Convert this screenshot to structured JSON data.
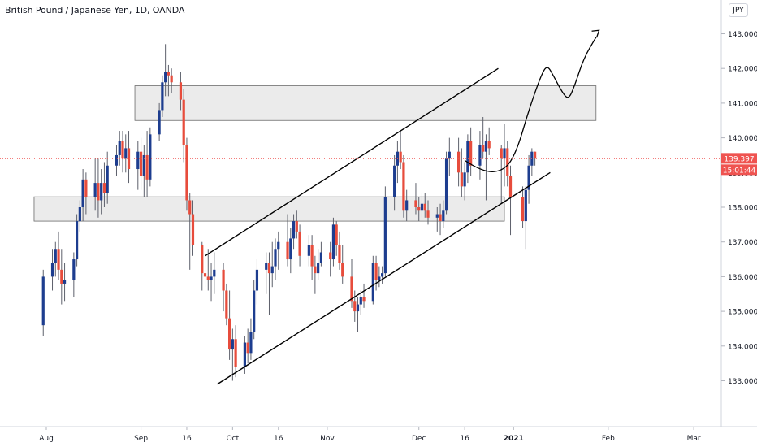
{
  "header": {
    "symbol_title": "British Pound / Japanese Yen, 1D, OANDA",
    "currency_button": "JPY"
  },
  "colors": {
    "up": "#1d3d8f",
    "down": "#e74c3c",
    "zone_fill": "#e6e6e6",
    "zone_stroke": "#6b6b6b",
    "last_price_bg": "#ef5350",
    "countdown_bg": "#ef5350",
    "axis_text": "#131722",
    "drawing": "#000000"
  },
  "price_axis": {
    "last_price_label": "139.397",
    "countdown_label": "15:01:44"
  },
  "chart_data": {
    "type": "candlestick",
    "instrument": "British Pound / Japanese Yen",
    "timeframe": "1D",
    "source": "OANDA",
    "y_ticks": [
      133,
      134,
      135,
      136,
      137,
      138,
      139,
      140,
      141,
      142,
      143
    ],
    "y_tick_labels": [
      "133.000",
      "134.000",
      "135.000",
      "136.000",
      "137.000",
      "138.000",
      "139.000",
      "140.000",
      "141.000",
      "142.000",
      "143.000"
    ],
    "ylim": [
      132.1,
      144.4
    ],
    "x_axis_labels": [
      {
        "label": "Aug",
        "day": 0
      },
      {
        "label": "Sep",
        "day": 31
      },
      {
        "label": "16",
        "day": 46
      },
      {
        "label": "Oct",
        "day": 61
      },
      {
        "label": "16",
        "day": 76
      },
      {
        "label": "Nov",
        "day": 92
      },
      {
        "label": "Dec",
        "day": 122
      },
      {
        "label": "16",
        "day": 137
      },
      {
        "label": "2021",
        "day": 153
      },
      {
        "label": "Feb",
        "day": 184
      },
      {
        "label": "Mar",
        "day": 212
      }
    ],
    "last_price": 139.397,
    "candles": [
      {
        "t": "Jul 31",
        "o": 134.6,
        "h": 136.2,
        "l": 134.3,
        "c": 136.0
      },
      {
        "t": "Aug 3",
        "o": 136.0,
        "h": 136.8,
        "l": 135.6,
        "c": 136.4
      },
      {
        "t": "Aug 4",
        "o": 136.4,
        "h": 137.0,
        "l": 136.0,
        "c": 136.8
      },
      {
        "t": "Aug 5",
        "o": 136.8,
        "h": 137.3,
        "l": 135.9,
        "c": 136.2
      },
      {
        "t": "Aug 6",
        "o": 136.2,
        "h": 136.8,
        "l": 135.2,
        "c": 135.8
      },
      {
        "t": "Aug 7",
        "o": 135.8,
        "h": 136.4,
        "l": 135.3,
        "c": 135.9
      },
      {
        "t": "Aug 10",
        "o": 135.9,
        "h": 136.7,
        "l": 135.4,
        "c": 136.5
      },
      {
        "t": "Aug 11",
        "o": 136.5,
        "h": 137.8,
        "l": 136.3,
        "c": 137.6
      },
      {
        "t": "Aug 12",
        "o": 137.6,
        "h": 138.2,
        "l": 137.3,
        "c": 138.0
      },
      {
        "t": "Aug 13",
        "o": 138.0,
        "h": 139.1,
        "l": 137.6,
        "c": 138.8
      },
      {
        "t": "Aug 14",
        "o": 138.8,
        "h": 139.0,
        "l": 137.8,
        "c": 138.3
      },
      {
        "t": "Aug 17",
        "o": 138.3,
        "h": 139.4,
        "l": 137.9,
        "c": 138.7
      },
      {
        "t": "Aug 18",
        "o": 138.7,
        "h": 139.4,
        "l": 137.7,
        "c": 138.2
      },
      {
        "t": "Aug 19",
        "o": 138.2,
        "h": 139.1,
        "l": 137.8,
        "c": 138.7
      },
      {
        "t": "Aug 20",
        "o": 138.7,
        "h": 139.3,
        "l": 138.0,
        "c": 138.4
      },
      {
        "t": "Aug 21",
        "o": 138.4,
        "h": 139.6,
        "l": 138.1,
        "c": 139.2
      },
      {
        "t": "Aug 24",
        "o": 139.2,
        "h": 139.8,
        "l": 138.9,
        "c": 139.5
      },
      {
        "t": "Aug 25",
        "o": 139.5,
        "h": 140.2,
        "l": 139.2,
        "c": 139.9
      },
      {
        "t": "Aug 26",
        "o": 139.9,
        "h": 140.2,
        "l": 139.0,
        "c": 139.4
      },
      {
        "t": "Aug 27",
        "o": 139.4,
        "h": 140.1,
        "l": 139.0,
        "c": 139.7
      },
      {
        "t": "Aug 28",
        "o": 139.7,
        "h": 140.2,
        "l": 138.7,
        "c": 139.1
      },
      {
        "t": "Aug 31",
        "o": 139.1,
        "h": 139.9,
        "l": 138.5,
        "c": 139.6
      },
      {
        "t": "Sep 1",
        "o": 139.6,
        "h": 140.0,
        "l": 138.5,
        "c": 138.9
      },
      {
        "t": "Sep 2",
        "o": 138.9,
        "h": 139.8,
        "l": 138.3,
        "c": 139.5
      },
      {
        "t": "Sep 3",
        "o": 139.5,
        "h": 140.2,
        "l": 138.3,
        "c": 138.8
      },
      {
        "t": "Sep 4",
        "o": 138.8,
        "h": 140.3,
        "l": 138.6,
        "c": 140.1
      },
      {
        "t": "Sep 7",
        "o": 140.1,
        "h": 141.0,
        "l": 139.9,
        "c": 140.8
      },
      {
        "t": "Sep 8",
        "o": 140.8,
        "h": 141.8,
        "l": 140.6,
        "c": 141.6
      },
      {
        "t": "Sep 9",
        "o": 141.6,
        "h": 142.7,
        "l": 141.2,
        "c": 141.9
      },
      {
        "t": "Sep 10",
        "o": 141.9,
        "h": 142.1,
        "l": 141.2,
        "c": 141.8
      },
      {
        "t": "Sep 11",
        "o": 141.8,
        "h": 142.0,
        "l": 141.3,
        "c": 141.6
      },
      {
        "t": "Sep 14",
        "o": 141.6,
        "h": 141.9,
        "l": 140.8,
        "c": 141.1
      },
      {
        "t": "Sep 15",
        "o": 141.1,
        "h": 141.4,
        "l": 139.3,
        "c": 139.8
      },
      {
        "t": "Sep 16",
        "o": 139.8,
        "h": 140.0,
        "l": 137.9,
        "c": 138.2
      },
      {
        "t": "Sep 17",
        "o": 138.2,
        "h": 138.4,
        "l": 136.2,
        "c": 137.8
      },
      {
        "t": "Sep 18",
        "o": 137.8,
        "h": 138.2,
        "l": 136.6,
        "c": 136.9
      },
      {
        "t": "Sep 21",
        "o": 136.9,
        "h": 137.0,
        "l": 135.6,
        "c": 136.1
      },
      {
        "t": "Sep 22",
        "o": 136.1,
        "h": 136.6,
        "l": 135.7,
        "c": 136.0
      },
      {
        "t": "Sep 23",
        "o": 136.0,
        "h": 136.8,
        "l": 135.6,
        "c": 135.9
      },
      {
        "t": "Sep 24",
        "o": 135.9,
        "h": 136.4,
        "l": 135.3,
        "c": 136.0
      },
      {
        "t": "Sep 25",
        "o": 136.0,
        "h": 136.7,
        "l": 135.5,
        "c": 136.2
      },
      {
        "t": "Sep 28",
        "o": 136.2,
        "h": 136.4,
        "l": 135.0,
        "c": 135.6
      },
      {
        "t": "Sep 29",
        "o": 135.6,
        "h": 135.8,
        "l": 134.6,
        "c": 134.8
      },
      {
        "t": "Sep 30",
        "o": 134.8,
        "h": 135.6,
        "l": 133.6,
        "c": 133.9
      },
      {
        "t": "Oct 1",
        "o": 133.9,
        "h": 134.5,
        "l": 133.0,
        "c": 134.2
      },
      {
        "t": "Oct 2",
        "o": 134.2,
        "h": 134.6,
        "l": 133.1,
        "c": 133.4
      },
      {
        "t": "Oct 5",
        "o": 133.4,
        "h": 134.3,
        "l": 133.2,
        "c": 134.1
      },
      {
        "t": "Oct 6",
        "o": 134.1,
        "h": 134.5,
        "l": 133.5,
        "c": 133.8
      },
      {
        "t": "Oct 7",
        "o": 133.8,
        "h": 134.8,
        "l": 133.6,
        "c": 134.4
      },
      {
        "t": "Oct 8",
        "o": 134.4,
        "h": 135.9,
        "l": 134.2,
        "c": 135.6
      },
      {
        "t": "Oct 9",
        "o": 135.6,
        "h": 136.5,
        "l": 135.2,
        "c": 136.2
      },
      {
        "t": "Oct 12",
        "o": 136.2,
        "h": 136.7,
        "l": 135.5,
        "c": 136.4
      },
      {
        "t": "Oct 13",
        "o": 136.4,
        "h": 136.7,
        "l": 134.9,
        "c": 136.1
      },
      {
        "t": "Oct 14",
        "o": 136.1,
        "h": 137.0,
        "l": 135.7,
        "c": 136.3
      },
      {
        "t": "Oct 15",
        "o": 136.3,
        "h": 137.1,
        "l": 135.9,
        "c": 136.8
      },
      {
        "t": "Oct 16",
        "o": 136.8,
        "h": 137.3,
        "l": 136.2,
        "c": 137.0
      },
      {
        "t": "Oct 19",
        "o": 137.0,
        "h": 137.8,
        "l": 136.3,
        "c": 136.5
      },
      {
        "t": "Oct 20",
        "o": 136.5,
        "h": 137.4,
        "l": 136.1,
        "c": 137.1
      },
      {
        "t": "Oct 21",
        "o": 137.1,
        "h": 137.8,
        "l": 136.8,
        "c": 137.6
      },
      {
        "t": "Oct 22",
        "o": 137.6,
        "h": 137.9,
        "l": 137.1,
        "c": 137.3
      },
      {
        "t": "Oct 23",
        "o": 137.3,
        "h": 137.5,
        "l": 136.3,
        "c": 136.6
      },
      {
        "t": "Oct 26",
        "o": 136.6,
        "h": 137.2,
        "l": 136.3,
        "c": 136.9
      },
      {
        "t": "Oct 27",
        "o": 136.9,
        "h": 137.2,
        "l": 135.9,
        "c": 136.3
      },
      {
        "t": "Oct 28",
        "o": 136.3,
        "h": 136.6,
        "l": 135.5,
        "c": 136.1
      },
      {
        "t": "Oct 29",
        "o": 136.1,
        "h": 136.8,
        "l": 135.9,
        "c": 136.4
      },
      {
        "t": "Oct 30",
        "o": 136.4,
        "h": 137.0,
        "l": 136.3,
        "c": 136.7
      },
      {
        "t": "Nov 2",
        "o": 136.7,
        "h": 137.0,
        "l": 136.0,
        "c": 136.5
      },
      {
        "t": "Nov 3",
        "o": 136.5,
        "h": 137.7,
        "l": 136.3,
        "c": 137.5
      },
      {
        "t": "Nov 4",
        "o": 137.5,
        "h": 137.6,
        "l": 136.6,
        "c": 136.9
      },
      {
        "t": "Nov 5",
        "o": 136.9,
        "h": 137.3,
        "l": 136.2,
        "c": 136.4
      },
      {
        "t": "Nov 6",
        "o": 136.4,
        "h": 136.9,
        "l": 135.8,
        "c": 136.0
      },
      {
        "t": "Nov 9",
        "o": 136.0,
        "h": 136.5,
        "l": 135.1,
        "c": 135.3
      },
      {
        "t": "Nov 10",
        "o": 135.3,
        "h": 135.6,
        "l": 134.7,
        "c": 135.0
      },
      {
        "t": "Nov 11",
        "o": 135.0,
        "h": 135.4,
        "l": 134.4,
        "c": 135.2
      },
      {
        "t": "Nov 12",
        "o": 135.2,
        "h": 135.6,
        "l": 134.9,
        "c": 135.4
      },
      {
        "t": "Nov 13",
        "o": 135.4,
        "h": 135.8,
        "l": 135.1,
        "c": 135.3
      },
      {
        "t": "Nov 16",
        "o": 135.3,
        "h": 136.6,
        "l": 135.2,
        "c": 136.4
      },
      {
        "t": "Nov 17",
        "o": 136.4,
        "h": 136.6,
        "l": 135.6,
        "c": 135.9
      },
      {
        "t": "Nov 18",
        "o": 135.9,
        "h": 136.3,
        "l": 135.7,
        "c": 136.0
      },
      {
        "t": "Nov 19",
        "o": 136.0,
        "h": 136.3,
        "l": 135.8,
        "c": 136.1
      },
      {
        "t": "Nov 20",
        "o": 136.1,
        "h": 138.6,
        "l": 136.0,
        "c": 138.3
      },
      {
        "t": "Nov 23",
        "o": 138.3,
        "h": 139.5,
        "l": 137.9,
        "c": 139.2
      },
      {
        "t": "Nov 24",
        "o": 139.2,
        "h": 139.9,
        "l": 138.7,
        "c": 139.6
      },
      {
        "t": "Nov 25",
        "o": 139.6,
        "h": 140.2,
        "l": 139.1,
        "c": 139.3
      },
      {
        "t": "Nov 26",
        "o": 139.3,
        "h": 139.5,
        "l": 137.7,
        "c": 137.9
      },
      {
        "t": "Nov 27",
        "o": 137.9,
        "h": 138.5,
        "l": 137.6,
        "c": 138.2
      },
      {
        "t": "Nov 30",
        "o": 138.2,
        "h": 138.7,
        "l": 137.8,
        "c": 138.0
      },
      {
        "t": "Dec 1",
        "o": 138.0,
        "h": 138.3,
        "l": 137.6,
        "c": 137.9
      },
      {
        "t": "Dec 2",
        "o": 137.9,
        "h": 138.4,
        "l": 137.7,
        "c": 138.1
      },
      {
        "t": "Dec 3",
        "o": 138.1,
        "h": 138.4,
        "l": 137.7,
        "c": 137.9
      },
      {
        "t": "Dec 4",
        "o": 137.9,
        "h": 138.2,
        "l": 137.5,
        "c": 137.7
      },
      {
        "t": "Dec 7",
        "o": 137.7,
        "h": 138.0,
        "l": 137.3,
        "c": 137.8
      },
      {
        "t": "Dec 8",
        "o": 137.8,
        "h": 138.1,
        "l": 137.2,
        "c": 137.6
      },
      {
        "t": "Dec 9",
        "o": 137.6,
        "h": 138.2,
        "l": 137.4,
        "c": 137.9
      },
      {
        "t": "Dec 10",
        "o": 137.9,
        "h": 139.6,
        "l": 137.8,
        "c": 139.4
      },
      {
        "t": "Dec 11",
        "o": 139.4,
        "h": 140.0,
        "l": 138.9,
        "c": 139.6
      },
      {
        "t": "Dec 14",
        "o": 139.6,
        "h": 140.0,
        "l": 138.6,
        "c": 139.0
      },
      {
        "t": "Dec 15",
        "o": 139.0,
        "h": 139.7,
        "l": 138.3,
        "c": 138.6
      },
      {
        "t": "Dec 16",
        "o": 138.6,
        "h": 139.3,
        "l": 138.2,
        "c": 139.0
      },
      {
        "t": "Dec 17",
        "o": 139.0,
        "h": 140.1,
        "l": 138.7,
        "c": 139.9
      },
      {
        "t": "Dec 18",
        "o": 139.9,
        "h": 140.3,
        "l": 138.9,
        "c": 139.2
      },
      {
        "t": "Dec 21",
        "o": 139.2,
        "h": 140.2,
        "l": 138.8,
        "c": 139.8
      },
      {
        "t": "Dec 22",
        "o": 139.8,
        "h": 140.6,
        "l": 139.4,
        "c": 139.6
      },
      {
        "t": "Dec 23",
        "o": 139.6,
        "h": 140.1,
        "l": 138.2,
        "c": 139.9
      },
      {
        "t": "Dec 24",
        "o": 139.9,
        "h": 140.3,
        "l": 139.5,
        "c": 139.7
      },
      {
        "t": "Dec 28",
        "o": 139.7,
        "h": 139.8,
        "l": 138.1,
        "c": 139.4
      },
      {
        "t": "Dec 29",
        "o": 139.4,
        "h": 140.4,
        "l": 138.6,
        "c": 139.7
      },
      {
        "t": "Dec 30",
        "o": 139.7,
        "h": 139.9,
        "l": 138.6,
        "c": 138.9
      },
      {
        "t": "Dec 31",
        "o": 138.9,
        "h": 139.2,
        "l": 137.2,
        "c": 138.3
      },
      {
        "t": "Jan 4",
        "o": 138.3,
        "h": 138.6,
        "l": 137.4,
        "c": 137.6
      },
      {
        "t": "Jan 5",
        "o": 137.6,
        "h": 138.6,
        "l": 136.8,
        "c": 138.5
      },
      {
        "t": "Jan 6",
        "o": 138.5,
        "h": 139.5,
        "l": 138.1,
        "c": 139.2
      },
      {
        "t": "Jan 7",
        "o": 139.2,
        "h": 139.7,
        "l": 138.9,
        "c": 139.6
      },
      {
        "t": "Jan 8",
        "o": 139.6,
        "h": 139.6,
        "l": 139.2,
        "c": 139.4
      }
    ],
    "zones": [
      {
        "name": "resistance-zone",
        "from_day": 29,
        "to_day": 180,
        "low": 140.5,
        "high": 141.5
      },
      {
        "name": "support-zone",
        "from_day": -4,
        "to_day": 150,
        "low": 137.6,
        "high": 138.3
      }
    ],
    "channel_lines": [
      {
        "name": "channel-upper-line",
        "d1": 52,
        "p1": 136.6,
        "d2": 148,
        "p2": 142.0
      },
      {
        "name": "channel-lower-line",
        "d1": 56,
        "p1": 132.9,
        "d2": 165,
        "p2": 139.0
      }
    ],
    "projection_path": [
      [
        137,
        139.35
      ],
      [
        143,
        139.0
      ],
      [
        150,
        139.05
      ],
      [
        154,
        139.6
      ],
      [
        158,
        140.8
      ],
      [
        162,
        141.8
      ],
      [
        164,
        142.1
      ],
      [
        166,
        141.8
      ],
      [
        169,
        141.3
      ],
      [
        171,
        141.1
      ],
      [
        173,
        141.5
      ],
      [
        176,
        142.3
      ],
      [
        180,
        142.9
      ]
    ],
    "projection_arrow_tip": [
      181,
      143.1
    ]
  }
}
